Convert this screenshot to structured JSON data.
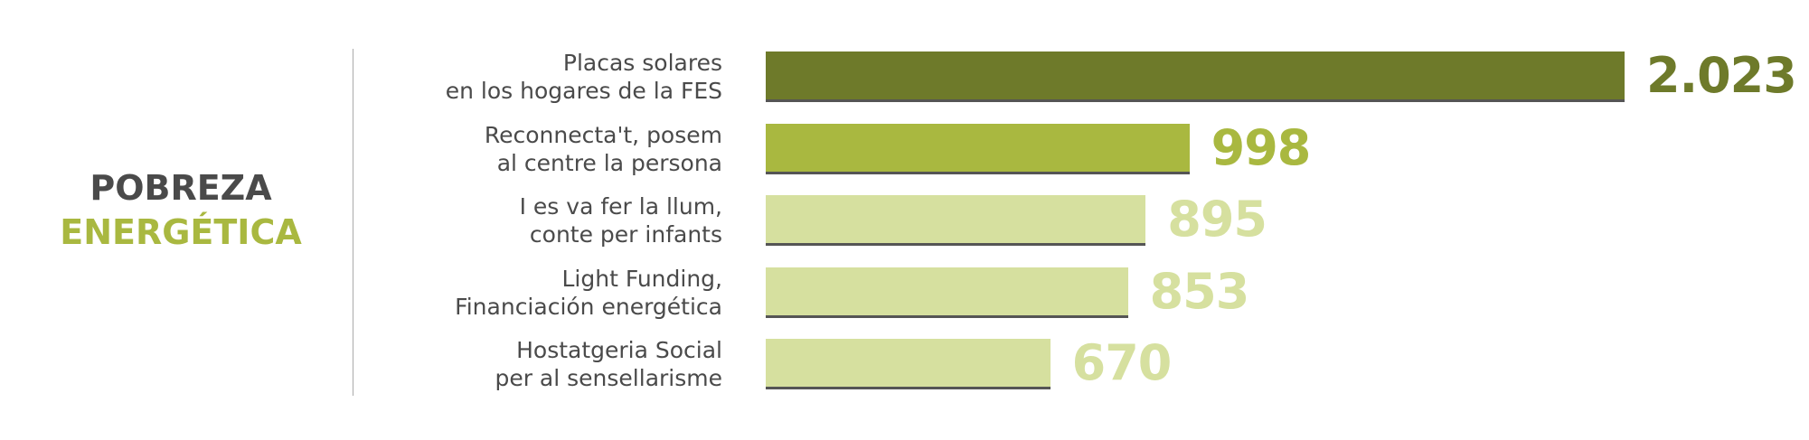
{
  "chart_data": {
    "type": "bar",
    "orientation": "horizontal",
    "title_lines": [
      "POBREZA",
      "ENERGÉTICA"
    ],
    "title_colors": [
      "#4a4a4a",
      "#a9b840"
    ],
    "categories": [
      "Placas solares\nen los hogares de la FES",
      "Reconnecta't, posem\nal centre la persona",
      "I es va fer la llum,\nconte per infants",
      "Light Funding,\nFinanciación energética",
      "Hostatgeria Social\nper al sensellarisme"
    ],
    "values": [
      2023,
      998,
      895,
      853,
      670
    ],
    "value_labels": [
      "2.023",
      "998",
      "895",
      "853",
      "670"
    ],
    "colors": [
      "#6e7a2a",
      "#a9b840",
      "#d6e09f",
      "#d6e09f",
      "#d6e09f"
    ]
  }
}
